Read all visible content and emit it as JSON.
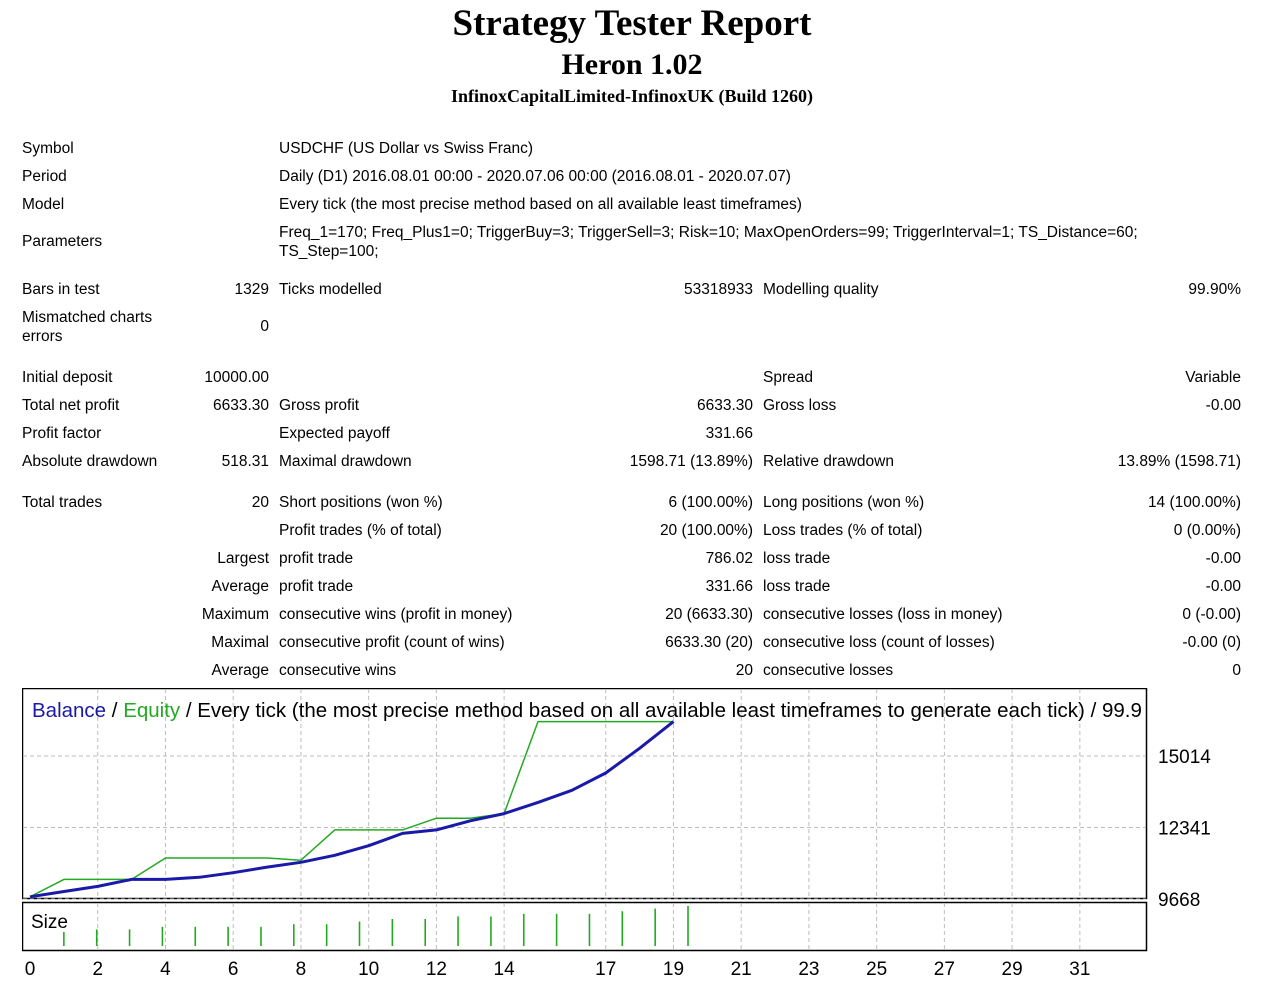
{
  "header": {
    "title": "Strategy Tester Report",
    "subtitle": "Heron 1.02",
    "server": "InfinoxCapitalLimited-InfinoxUK (Build 1260)"
  },
  "info": {
    "symbol_label": "Symbol",
    "symbol": "USDCHF (US Dollar vs Swiss Franc)",
    "period_label": "Period",
    "period": "Daily (D1) 2016.08.01 00:00 - 2020.07.06 00:00 (2016.08.01 - 2020.07.07)",
    "model_label": "Model",
    "model": "Every tick (the most precise method based on all available least timeframes)",
    "parameters_label": "Parameters",
    "parameters_line1": "Freq_1=170; Freq_Plus1=0; TriggerBuy=3; TriggerSell=3; Risk=10; MaxOpenOrders=99; TriggerInterval=1; TS_Distance=60;",
    "parameters_line2": "TS_Step=100;"
  },
  "stats": {
    "bars_label": "Bars in test",
    "bars": "1329",
    "ticks_label": "Ticks modelled",
    "ticks": "53318933",
    "quality_label": "Modelling quality",
    "quality": "99.90%",
    "mismatch_label_1": "Mismatched charts",
    "mismatch_label_2": "errors",
    "mismatch": "0",
    "deposit_label": "Initial deposit",
    "deposit": "10000.00",
    "spread_label": "Spread",
    "spread": "Variable",
    "net_profit_label": "Total net profit",
    "net_profit": "6633.30",
    "gross_profit_label": "Gross profit",
    "gross_profit": "6633.30",
    "gross_loss_label": "Gross loss",
    "gross_loss": "-0.00",
    "profit_factor_label": "Profit factor",
    "expected_payoff_label": "Expected payoff",
    "expected_payoff": "331.66",
    "abs_dd_label": "Absolute drawdown",
    "abs_dd": "518.31",
    "max_dd_label": "Maximal drawdown",
    "max_dd": "1598.71 (13.89%)",
    "rel_dd_label": "Relative drawdown",
    "rel_dd": "13.89% (1598.71)",
    "trades_label": "Total trades",
    "trades": "20",
    "short_label": "Short positions (won %)",
    "short": "6 (100.00%)",
    "long_label": "Long positions (won %)",
    "long": "14 (100.00%)",
    "profit_trades_label": "Profit trades (% of total)",
    "profit_trades": "20 (100.00%)",
    "loss_trades_label": "Loss trades (% of total)",
    "loss_trades": "0 (0.00%)",
    "largest_label": "Largest",
    "largest_profit_label": "profit trade",
    "largest_profit": "786.02",
    "largest_loss_label": "loss trade",
    "largest_loss": "-0.00",
    "average_label": "Average",
    "average_profit_label": "profit trade",
    "average_profit": "331.66",
    "average_loss_label": "loss trade",
    "average_loss": "-0.00",
    "maximum_label": "Maximum",
    "max_consec_wins_label": "consecutive wins (profit in money)",
    "max_consec_wins": "20 (6633.30)",
    "max_consec_losses_label": "consecutive losses (loss in money)",
    "max_consec_losses": "0 (-0.00)",
    "maximal_label": "Maximal",
    "maximal_consec_profit_label": "consecutive profit (count of wins)",
    "maximal_consec_profit": "6633.30 (20)",
    "maximal_consec_loss_label": "consecutive loss (count of losses)",
    "maximal_consec_loss": "-0.00 (0)",
    "average2_label": "Average",
    "avg_consec_wins_label": "consecutive wins",
    "avg_consec_wins": "20",
    "avg_consec_losses_label": "consecutive losses",
    "avg_consec_losses": "0"
  },
  "colors": {
    "balance": "#1a1aa8",
    "equity": "#22aa22",
    "grid": "#bdbdbd"
  },
  "chart_data": {
    "type": "line",
    "title_parts": {
      "balance": "Balance",
      "sep1": " / ",
      "equity": "Equity",
      "rest": " / Every tick (the most precise method based on all available least timeframes to generate each tick) / 99.9"
    },
    "y_ticks": [
      "15014",
      "12341",
      "9668"
    ],
    "ylim": [
      9668,
      16400
    ],
    "x_ticks": [
      "0",
      "2",
      "4",
      "6",
      "8",
      "10",
      "12",
      "14",
      "17",
      "19",
      "21",
      "23",
      "25",
      "27",
      "29",
      "31"
    ],
    "x_max": 31.3,
    "series": [
      {
        "name": "Balance",
        "points": [
          [
            0,
            9750
          ],
          [
            1,
            9950
          ],
          [
            2,
            10140
          ],
          [
            3,
            10400
          ],
          [
            4,
            10400
          ],
          [
            5,
            10480
          ],
          [
            6,
            10650
          ],
          [
            7,
            10860
          ],
          [
            8,
            11040
          ],
          [
            9,
            11300
          ],
          [
            10,
            11660
          ],
          [
            11,
            12120
          ],
          [
            12,
            12250
          ],
          [
            13,
            12590
          ],
          [
            14,
            12860
          ],
          [
            15,
            13280
          ],
          [
            16,
            13730
          ],
          [
            17,
            14380
          ],
          [
            18,
            15300
          ],
          [
            19,
            16300
          ]
        ]
      },
      {
        "name": "Equity",
        "points": [
          [
            0,
            9750
          ],
          [
            1,
            10400
          ],
          [
            2,
            10400
          ],
          [
            3,
            10400
          ],
          [
            4,
            11200
          ],
          [
            5,
            11200
          ],
          [
            6,
            11200
          ],
          [
            7,
            11200
          ],
          [
            8,
            11120
          ],
          [
            9,
            12250
          ],
          [
            10,
            12250
          ],
          [
            11,
            12250
          ],
          [
            12,
            12690
          ],
          [
            13,
            12690
          ],
          [
            14,
            12860
          ],
          [
            15,
            16300
          ],
          [
            16,
            16300
          ],
          [
            17,
            16300
          ],
          [
            18,
            16300
          ],
          [
            19,
            16300
          ]
        ]
      }
    ],
    "size_panel": {
      "label": "Size",
      "x_index": [
        1,
        2,
        3,
        4,
        5,
        6,
        7,
        8,
        9,
        10,
        11,
        12,
        13,
        14,
        15,
        16,
        17,
        18,
        19,
        20
      ],
      "values": [
        0.1,
        0.11,
        0.11,
        0.12,
        0.12,
        0.12,
        0.12,
        0.13,
        0.13,
        0.14,
        0.15,
        0.15,
        0.16,
        0.16,
        0.17,
        0.17,
        0.17,
        0.18,
        0.19,
        0.2
      ]
    }
  }
}
